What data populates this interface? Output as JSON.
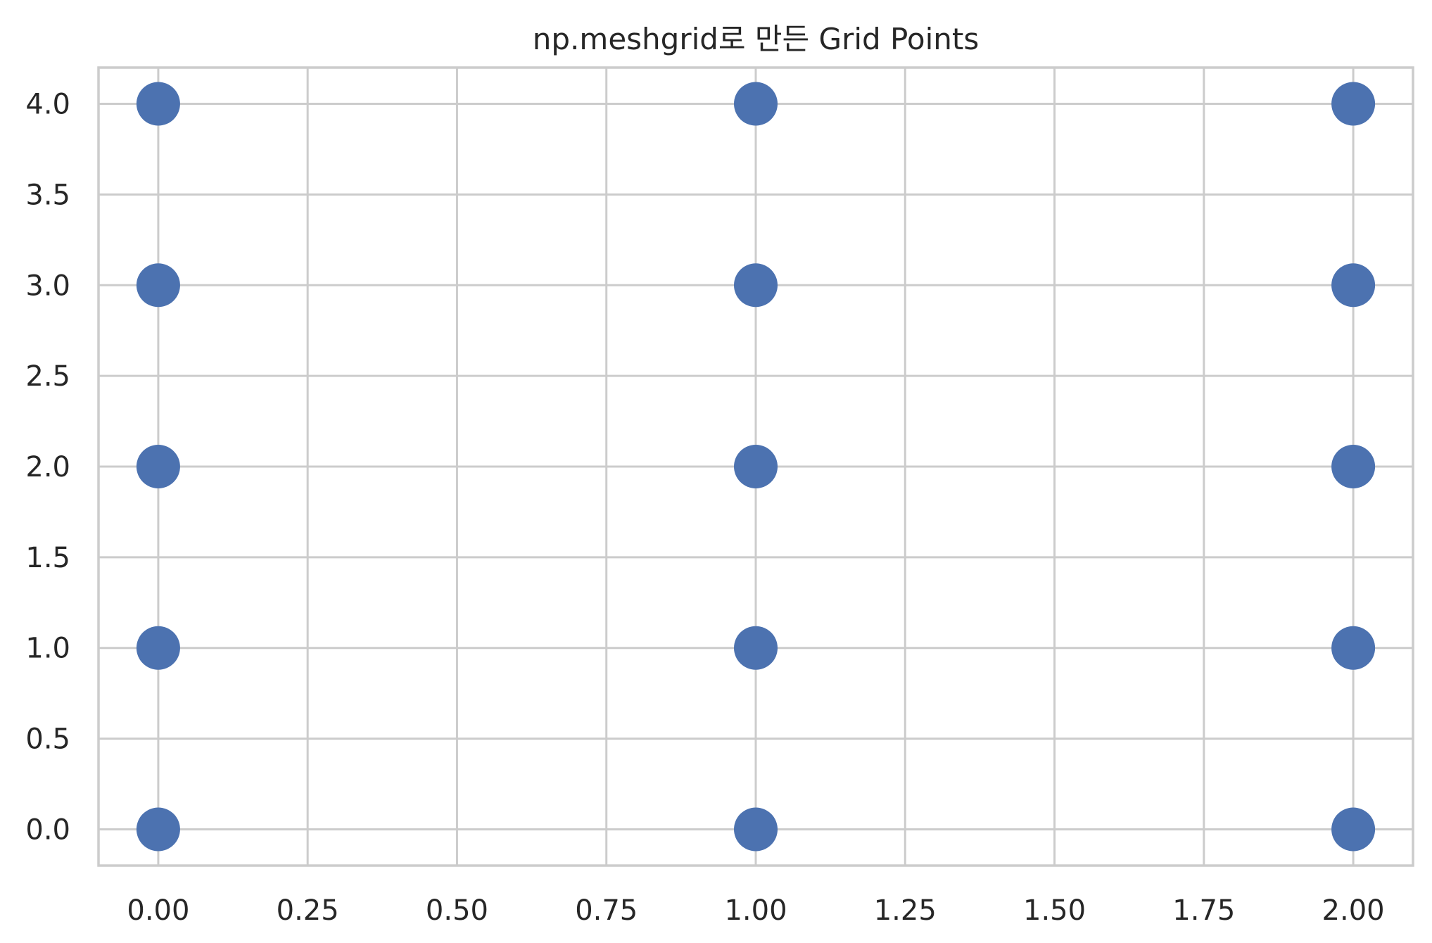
{
  "chart_data": {
    "type": "scatter",
    "title": "np.meshgrid로 만든 Grid Points",
    "xlabel": "",
    "ylabel": "",
    "xlim": [
      -0.1,
      2.1
    ],
    "ylim": [
      -0.2,
      4.2
    ],
    "grid": true,
    "marker_color": "#4c72b0",
    "x_ticks": [
      0.0,
      0.25,
      0.5,
      0.75,
      1.0,
      1.25,
      1.5,
      1.75,
      2.0
    ],
    "x_tick_labels": [
      "0.00",
      "0.25",
      "0.50",
      "0.75",
      "1.00",
      "1.25",
      "1.50",
      "1.75",
      "2.00"
    ],
    "y_ticks": [
      0.0,
      0.5,
      1.0,
      1.5,
      2.0,
      2.5,
      3.0,
      3.5,
      4.0
    ],
    "y_tick_labels": [
      "0.0",
      "0.5",
      "1.0",
      "1.5",
      "2.0",
      "2.5",
      "3.0",
      "3.5",
      "4.0"
    ],
    "points": [
      {
        "x": 0,
        "y": 0
      },
      {
        "x": 1,
        "y": 0
      },
      {
        "x": 2,
        "y": 0
      },
      {
        "x": 0,
        "y": 1
      },
      {
        "x": 1,
        "y": 1
      },
      {
        "x": 2,
        "y": 1
      },
      {
        "x": 0,
        "y": 2
      },
      {
        "x": 1,
        "y": 2
      },
      {
        "x": 2,
        "y": 2
      },
      {
        "x": 0,
        "y": 3
      },
      {
        "x": 1,
        "y": 3
      },
      {
        "x": 2,
        "y": 3
      },
      {
        "x": 0,
        "y": 4
      },
      {
        "x": 1,
        "y": 4
      },
      {
        "x": 2,
        "y": 4
      }
    ]
  }
}
